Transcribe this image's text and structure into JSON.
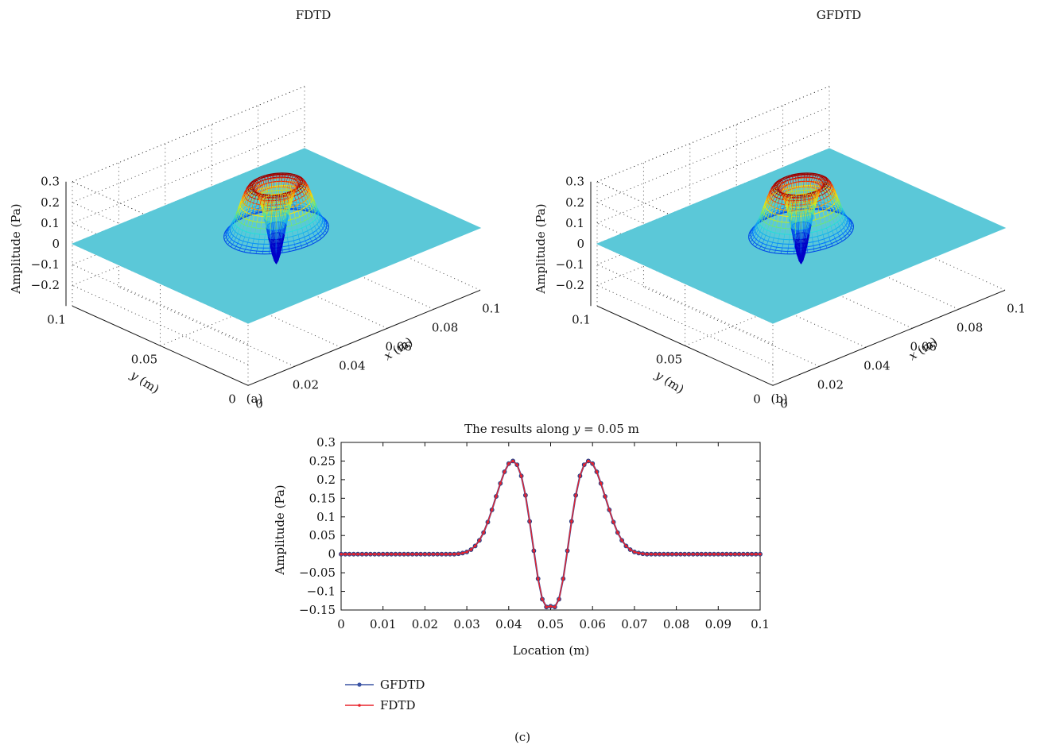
{
  "chart_data": [
    {
      "type": "surface3d",
      "panel_label": "(a)",
      "title": "FDTD",
      "xlabel": "x (m)",
      "ylabel": "y (m)",
      "zlabel": "Amplitude (Pa)",
      "xlim": [
        0,
        0.1
      ],
      "ylim": [
        0,
        0.1
      ],
      "zlim": [
        -0.3,
        0.3
      ],
      "xticks": [
        "0",
        "0.02",
        "0.04",
        "0.06",
        "0.08",
        "0.1"
      ],
      "yticks": [
        "0",
        "0.05",
        "0.1"
      ],
      "zticks": [
        "0.3",
        "0.2",
        "0.1",
        "0",
        "−0.1",
        "−0.2"
      ],
      "surface": {
        "center": [
          0.05,
          0.05
        ],
        "peak": 0.25,
        "min": -0.14,
        "flat_value": 0,
        "colormap": "jet",
        "flat_color": "#5bc8d8"
      },
      "grid": true
    },
    {
      "type": "surface3d",
      "panel_label": "(b)",
      "title": "GFDTD",
      "xlabel": "x (m)",
      "ylabel": "y (m)",
      "zlabel": "Amplitude (Pa)",
      "xlim": [
        0,
        0.1
      ],
      "ylim": [
        0,
        0.1
      ],
      "zlim": [
        -0.3,
        0.3
      ],
      "xticks": [
        "0",
        "0.02",
        "0.04",
        "0.06",
        "0.08",
        "0.1"
      ],
      "yticks": [
        "0",
        "0.05",
        "0.1"
      ],
      "zticks": [
        "0.3",
        "0.2",
        "0.1",
        "0",
        "−0.1",
        "−0.2"
      ],
      "surface": {
        "center": [
          0.05,
          0.05
        ],
        "peak": 0.25,
        "min": -0.14,
        "flat_value": 0,
        "colormap": "jet",
        "flat_color": "#5bc8d8"
      },
      "grid": true
    },
    {
      "type": "line",
      "panel_label": "(c)",
      "title": "The results along y = 0.05 m",
      "xlabel": "Location (m)",
      "ylabel": "Amplitude (Pa)",
      "xlim": [
        0,
        0.1
      ],
      "ylim": [
        -0.15,
        0.3
      ],
      "xticks": [
        "0",
        "0.01",
        "0.02",
        "0.03",
        "0.04",
        "0.05",
        "0.06",
        "0.07",
        "0.08",
        "0.09",
        "0.1"
      ],
      "yticks": [
        "0.3",
        "0.25",
        "0.2",
        "0.15",
        "0.1",
        "0.05",
        "0",
        "−0.05",
        "−0.1",
        "−0.15"
      ],
      "legend_position": "below",
      "x": [
        0,
        0.001,
        0.002,
        0.003,
        0.004,
        0.005,
        0.006,
        0.007,
        0.008,
        0.009,
        0.01,
        0.011,
        0.012,
        0.013,
        0.014,
        0.015,
        0.016,
        0.017,
        0.018,
        0.019,
        0.02,
        0.021,
        0.022,
        0.023,
        0.024,
        0.025,
        0.026,
        0.027,
        0.028,
        0.029,
        0.03,
        0.031,
        0.032,
        0.033,
        0.034,
        0.035,
        0.036,
        0.037,
        0.038,
        0.039,
        0.04,
        0.041,
        0.042,
        0.043,
        0.044,
        0.045,
        0.046,
        0.047,
        0.048,
        0.049,
        0.05,
        0.051,
        0.052,
        0.053,
        0.054,
        0.055,
        0.056,
        0.057,
        0.058,
        0.059,
        0.06,
        0.061,
        0.062,
        0.063,
        0.064,
        0.065,
        0.066,
        0.067,
        0.068,
        0.069,
        0.07,
        0.071,
        0.072,
        0.073,
        0.074,
        0.075,
        0.076,
        0.077,
        0.078,
        0.079,
        0.08,
        0.081,
        0.082,
        0.083,
        0.084,
        0.085,
        0.086,
        0.087,
        0.088,
        0.089,
        0.09,
        0.091,
        0.092,
        0.093,
        0.094,
        0.095,
        0.096,
        0.097,
        0.098,
        0.099,
        0.1
      ],
      "series": [
        {
          "name": "GFDTD",
          "color": "#3a53a4",
          "marker": "circle",
          "values": [
            0,
            0,
            0,
            0,
            0,
            0,
            0,
            0,
            0,
            0,
            0,
            0,
            0,
            0,
            0,
            0,
            0,
            0,
            0,
            0,
            0,
            0,
            0,
            0,
            0,
            0,
            0,
            0,
            0.001,
            0.003,
            0.006,
            0.012,
            0.022,
            0.037,
            0.058,
            0.086,
            0.119,
            0.155,
            0.19,
            0.221,
            0.243,
            0.25,
            0.24,
            0.21,
            0.158,
            0.088,
            0.009,
            -0.066,
            -0.121,
            -0.142,
            -0.14,
            -0.142,
            -0.121,
            -0.066,
            0.009,
            0.088,
            0.158,
            0.21,
            0.24,
            0.25,
            0.243,
            0.221,
            0.19,
            0.155,
            0.119,
            0.086,
            0.058,
            0.037,
            0.022,
            0.012,
            0.006,
            0.003,
            0.001,
            0,
            0,
            0,
            0,
            0,
            0,
            0,
            0,
            0,
            0,
            0,
            0,
            0,
            0,
            0,
            0,
            0,
            0,
            0,
            0,
            0,
            0,
            0,
            0,
            0,
            0,
            0,
            0
          ]
        },
        {
          "name": "FDTD",
          "color": "#e8232b",
          "marker": "dot",
          "values": [
            0,
            0,
            0,
            0,
            0,
            0,
            0,
            0,
            0,
            0,
            0,
            0,
            0,
            0,
            0,
            0,
            0,
            0,
            0,
            0,
            0,
            0,
            0,
            0,
            0,
            0,
            0,
            0,
            0.001,
            0.003,
            0.006,
            0.012,
            0.022,
            0.037,
            0.058,
            0.086,
            0.119,
            0.155,
            0.19,
            0.221,
            0.243,
            0.25,
            0.24,
            0.21,
            0.158,
            0.088,
            0.009,
            -0.066,
            -0.121,
            -0.142,
            -0.14,
            -0.142,
            -0.121,
            -0.066,
            0.009,
            0.088,
            0.158,
            0.21,
            0.24,
            0.25,
            0.243,
            0.221,
            0.19,
            0.155,
            0.119,
            0.086,
            0.058,
            0.037,
            0.022,
            0.012,
            0.006,
            0.003,
            0.001,
            0,
            0,
            0,
            0,
            0,
            0,
            0,
            0,
            0,
            0,
            0,
            0,
            0,
            0,
            0,
            0,
            0,
            0,
            0,
            0,
            0,
            0,
            0,
            0,
            0,
            0,
            0,
            0
          ]
        }
      ]
    }
  ]
}
